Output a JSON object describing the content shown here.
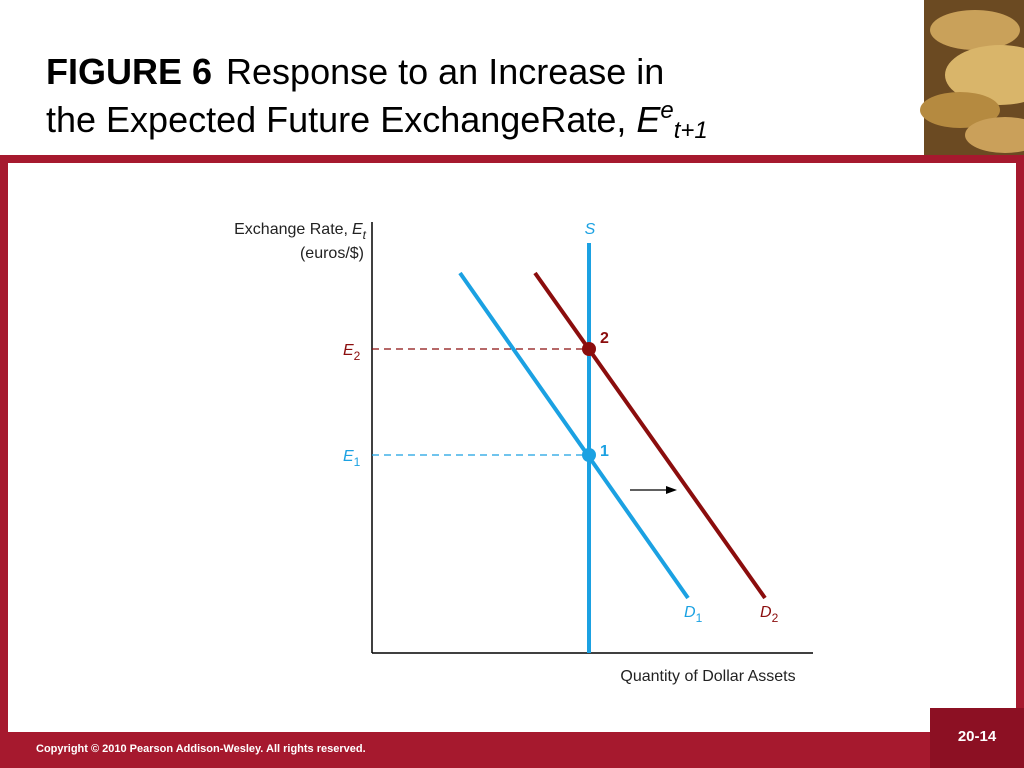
{
  "header": {
    "figure": "FIGURE 6",
    "title_lines": [
      "Response to an Increase in",
      "the Expected Future ExchangeRate,"
    ],
    "symbol": "E",
    "superscript": "e",
    "subscript": "t+1"
  },
  "diagram": {
    "y_axis": {
      "label": "Exchange Rate,",
      "symbol": "E",
      "subscript": "t",
      "units": "(euros/$)"
    },
    "x_axis": {
      "label": "Quantity of Dollar Assets"
    },
    "curves": {
      "supply": "S",
      "d1": {
        "symbol": "D",
        "subscript": "1"
      },
      "d2": {
        "symbol": "D",
        "subscript": "2"
      }
    },
    "points": {
      "p1": "1",
      "p2": "2"
    },
    "levels": {
      "e1": {
        "symbol": "E",
        "subscript": "1"
      },
      "e2": {
        "symbol": "E",
        "subscript": "2"
      }
    }
  },
  "footer": {
    "copyright": "Copyright © 2010 Pearson Addison-Wesley. All rights reserved.",
    "slide_number": "20-14"
  }
}
